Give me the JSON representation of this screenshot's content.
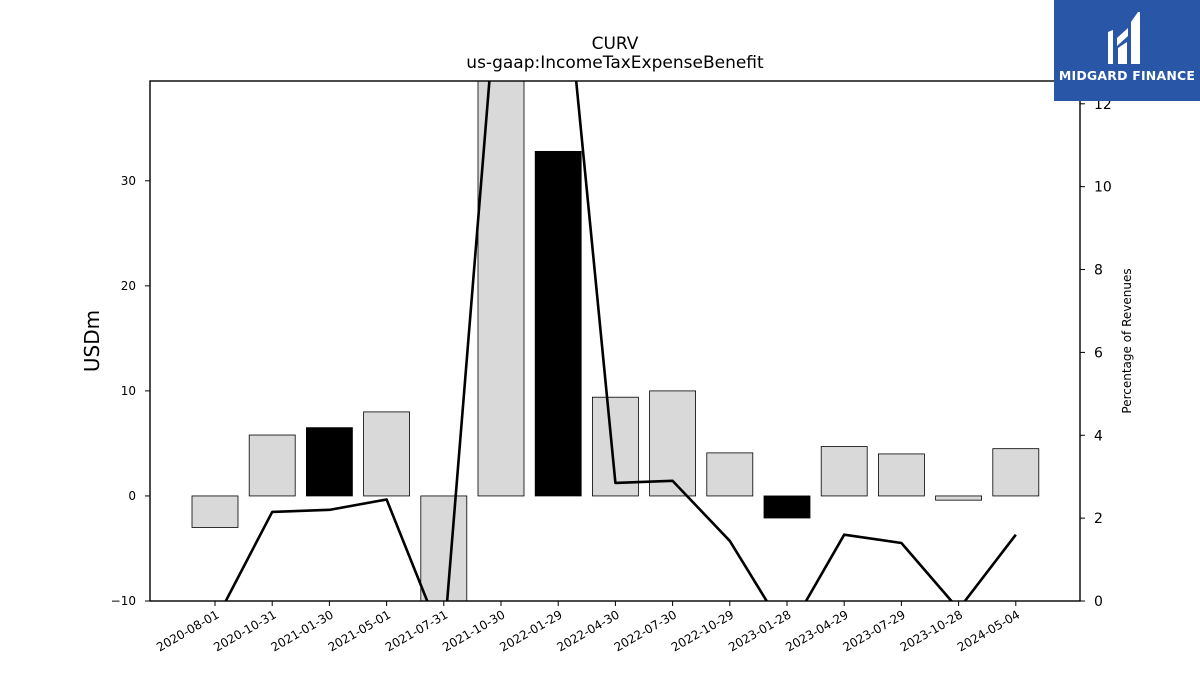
{
  "chart_data": {
    "type": "bar",
    "title": "CURV",
    "subtitle": "us-gaap:IncomeTaxExpenseBenefit",
    "ylabel": "USDm",
    "y2label": "Percentage of Revenues",
    "ylim": [
      -10,
      39.5
    ],
    "y2lim": [
      0,
      12.55
    ],
    "yticks": [
      -10,
      0,
      10,
      20,
      30
    ],
    "y2ticks": [
      0,
      2,
      4,
      6,
      8,
      10,
      12
    ],
    "categories": [
      "2020-08-01",
      "2020-10-31",
      "2021-01-30",
      "2021-05-01",
      "2021-07-31",
      "2021-10-30",
      "2022-01-29",
      "2022-04-30",
      "2022-07-30",
      "2022-10-29",
      "2023-01-28",
      "2023-04-29",
      "2023-07-29",
      "2023-10-28",
      "2024-05-04"
    ],
    "series": [
      {
        "type": "bar",
        "values": [
          -3.0,
          5.8,
          6.5,
          8.0,
          -10.5,
          40.5,
          32.8,
          9.4,
          10.0,
          4.1,
          -2.1,
          4.7,
          4.0,
          -0.4,
          4.5
        ],
        "highlight": [
          false,
          false,
          true,
          false,
          false,
          false,
          true,
          false,
          false,
          false,
          true,
          false,
          false,
          false,
          false
        ],
        "colors": {
          "normal": "#d9d9d9",
          "highlight": "#000000",
          "edge": "#000000"
        }
      },
      {
        "type": "line",
        "axis": "right",
        "values": [
          -0.5,
          2.15,
          2.2,
          2.45,
          -1.0,
          16.0,
          17.0,
          2.85,
          2.9,
          1.45,
          -0.8,
          1.6,
          1.4,
          -0.2,
          1.6
        ],
        "color": "#000000"
      }
    ]
  },
  "logo": {
    "text": "MIDGARD FINANCE",
    "color": "#2a56a8"
  }
}
